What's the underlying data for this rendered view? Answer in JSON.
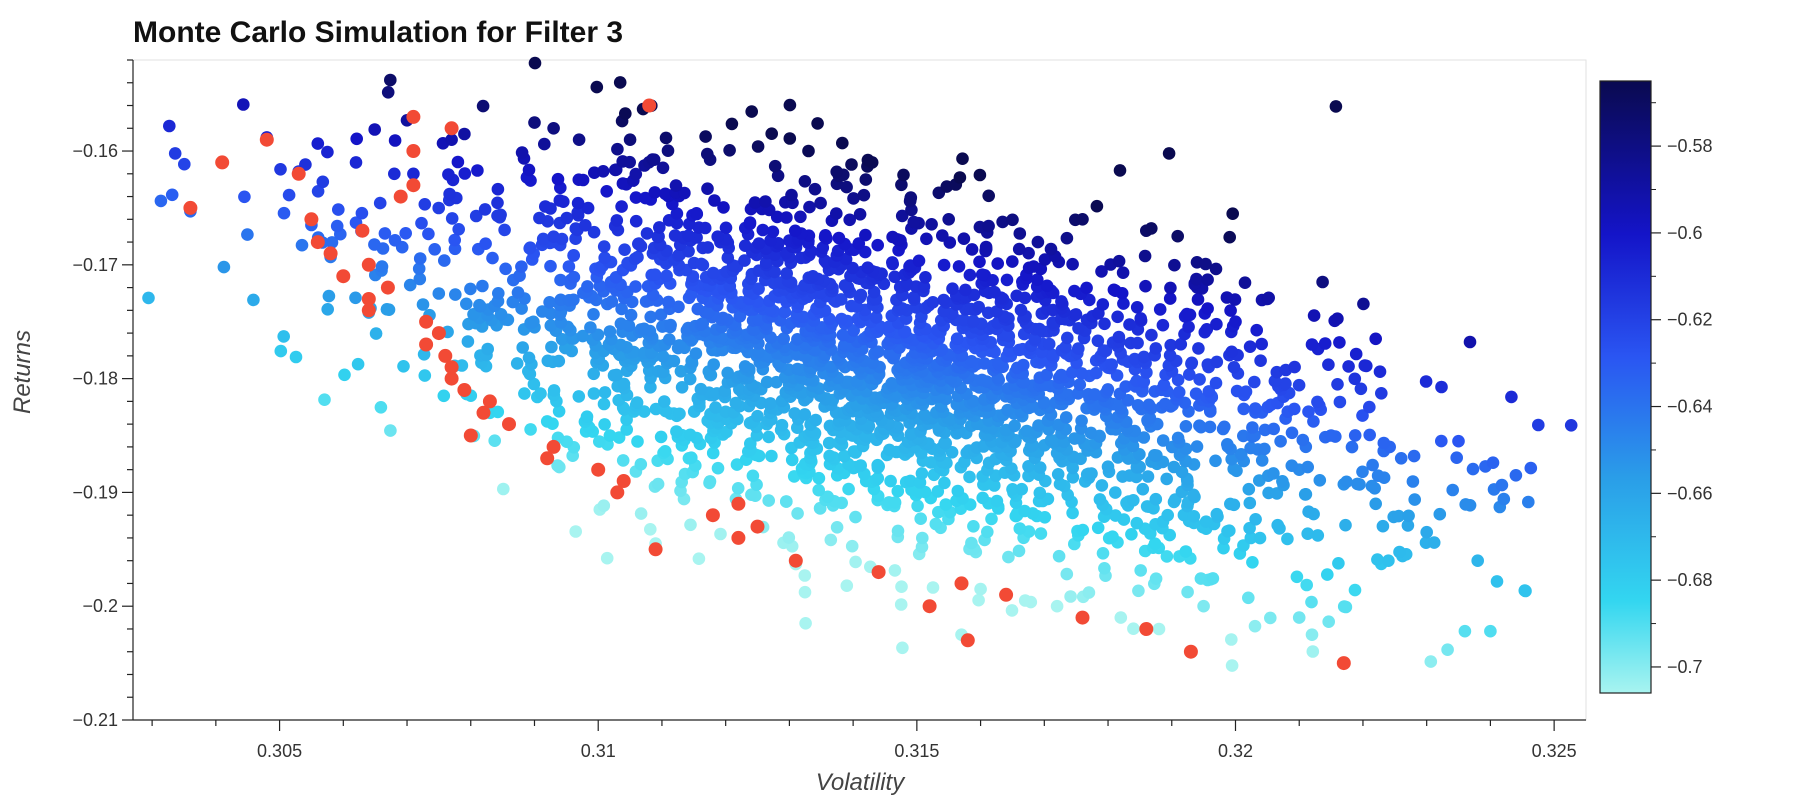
{
  "chart_data": {
    "type": "scatter",
    "title": "Monte Carlo Simulation for Filter 3",
    "xlabel": "Volatility",
    "ylabel": "Returns",
    "xlim": [
      0.3027,
      0.3255
    ],
    "ylim": [
      -0.21,
      -0.152
    ],
    "x_ticks": [
      0.305,
      0.31,
      0.315,
      0.32,
      0.325
    ],
    "x_tick_labels": [
      "0.305",
      "0.31",
      "0.315",
      "0.32",
      "0.325"
    ],
    "y_ticks": [
      -0.16,
      -0.17,
      -0.18,
      -0.19,
      -0.2,
      -0.21
    ],
    "y_tick_labels": [
      "−0.16",
      "−0.17",
      "−0.18",
      "−0.19",
      "−0.2",
      "−0.21"
    ],
    "grid": false,
    "colorbar": {
      "range": [
        -0.706,
        -0.565
      ],
      "ticks": [
        -0.58,
        -0.6,
        -0.62,
        -0.64,
        -0.66,
        -0.68,
        -0.7
      ],
      "tick_labels": [
        "−0.58",
        "−0.6",
        "−0.62",
        "−0.64",
        "−0.66",
        "−0.68",
        "−0.7"
      ],
      "colors": [
        "#0a0a50",
        "#1414c8",
        "#2a55f2",
        "#2a9ee8",
        "#33d6f0",
        "#a8f4f0"
      ]
    },
    "cloud": {
      "count": 2600,
      "center": [
        0.3145,
        -0.179
      ],
      "x_sd": 0.0037,
      "slope": -1.12,
      "resid_sd": 0.0072,
      "color_value_range": [
        -0.565,
        -0.706
      ]
    },
    "outlier_points": [
      [
        0.3036,
        -0.1653
      ],
      [
        0.3048,
        -0.1588
      ],
      [
        0.3053,
        -0.1618
      ],
      [
        0.3055,
        -0.1665
      ],
      [
        0.3058,
        -0.1693
      ],
      [
        0.3062,
        -0.1663
      ],
      [
        0.3064,
        -0.1742
      ],
      [
        0.3066,
        -0.1705
      ],
      [
        0.307,
        -0.1573
      ],
      [
        0.3071,
        -0.162
      ],
      [
        0.3073,
        -0.177
      ],
      [
        0.3077,
        -0.179
      ],
      [
        0.3079,
        -0.1585
      ],
      [
        0.308,
        -0.1815
      ],
      [
        0.3083,
        -0.183
      ],
      [
        0.3092,
        -0.187
      ],
      [
        0.3103,
        -0.19
      ],
      [
        0.3109,
        -0.1945
      ],
      [
        0.3131,
        -0.1963
      ],
      [
        0.3157,
        -0.2025
      ],
      [
        0.3177,
        -0.1988
      ],
      [
        0.3182,
        -0.201
      ],
      [
        0.321,
        -0.201
      ],
      [
        0.3212,
        -0.2025
      ],
      [
        0.3236,
        -0.2022
      ],
      [
        0.324,
        -0.2022
      ],
      [
        0.3244,
        -0.1885
      ],
      [
        0.3238,
        -0.196
      ],
      [
        0.323,
        -0.1935
      ],
      [
        0.3222,
        -0.191
      ],
      [
        0.3226,
        -0.187
      ],
      [
        0.3221,
        -0.1825
      ],
      [
        0.3216,
        -0.1805
      ],
      [
        0.3222,
        -0.1765
      ],
      [
        0.3215,
        -0.185
      ],
      [
        0.321,
        -0.188
      ],
      [
        0.3235,
        -0.1855
      ],
      [
        0.3224,
        -0.196
      ],
      [
        0.3194,
        -0.172
      ],
      [
        0.3186,
        -0.167
      ],
      [
        0.3176,
        -0.166
      ],
      [
        0.3169,
        -0.168
      ],
      [
        0.3155,
        -0.166
      ],
      [
        0.3143,
        -0.161
      ],
      [
        0.3133,
        -0.16
      ],
      [
        0.3097,
        -0.159
      ],
      [
        0.3093,
        -0.158
      ],
      [
        0.3105,
        -0.159
      ],
      [
        0.309,
        -0.1575
      ],
      [
        0.3062,
        -0.161
      ],
      [
        0.3077,
        -0.159
      ],
      [
        0.3068,
        -0.162
      ],
      [
        0.3205,
        -0.173
      ],
      [
        0.32,
        -0.175
      ],
      [
        0.3212,
        -0.177
      ],
      [
        0.3172,
        -0.2
      ],
      [
        0.3188,
        -0.202
      ],
      [
        0.3195,
        -0.2
      ],
      [
        0.316,
        -0.1985
      ],
      [
        0.3167,
        -0.1995
      ]
    ],
    "efficient_frontier": {
      "name": "",
      "color": "#f24a35",
      "points": [
        [
          0.3036,
          -0.165
        ],
        [
          0.3041,
          -0.161
        ],
        [
          0.3048,
          -0.159
        ],
        [
          0.3053,
          -0.162
        ],
        [
          0.3055,
          -0.166
        ],
        [
          0.3056,
          -0.168
        ],
        [
          0.3058,
          -0.169
        ],
        [
          0.306,
          -0.171
        ],
        [
          0.3063,
          -0.167
        ],
        [
          0.3064,
          -0.17
        ],
        [
          0.3064,
          -0.173
        ],
        [
          0.3064,
          -0.174
        ],
        [
          0.3067,
          -0.172
        ],
        [
          0.3069,
          -0.164
        ],
        [
          0.3071,
          -0.157
        ],
        [
          0.3071,
          -0.16
        ],
        [
          0.3071,
          -0.163
        ],
        [
          0.3073,
          -0.175
        ],
        [
          0.3073,
          -0.177
        ],
        [
          0.3075,
          -0.176
        ],
        [
          0.3076,
          -0.178
        ],
        [
          0.3077,
          -0.158
        ],
        [
          0.3077,
          -0.18
        ],
        [
          0.3077,
          -0.179
        ],
        [
          0.3079,
          -0.181
        ],
        [
          0.308,
          -0.185
        ],
        [
          0.3082,
          -0.183
        ],
        [
          0.3083,
          -0.182
        ],
        [
          0.3086,
          -0.184
        ],
        [
          0.3092,
          -0.187
        ],
        [
          0.3093,
          -0.186
        ],
        [
          0.31,
          -0.188
        ],
        [
          0.3103,
          -0.19
        ],
        [
          0.3104,
          -0.189
        ],
        [
          0.3108,
          -0.156
        ],
        [
          0.3109,
          -0.195
        ],
        [
          0.3118,
          -0.192
        ],
        [
          0.3122,
          -0.194
        ],
        [
          0.3122,
          -0.191
        ],
        [
          0.3125,
          -0.193
        ],
        [
          0.3131,
          -0.196
        ],
        [
          0.3144,
          -0.197
        ],
        [
          0.3152,
          -0.2
        ],
        [
          0.3157,
          -0.198
        ],
        [
          0.3158,
          -0.203
        ],
        [
          0.3164,
          -0.199
        ],
        [
          0.3176,
          -0.201
        ],
        [
          0.3186,
          -0.202
        ],
        [
          0.3193,
          -0.204
        ],
        [
          0.3217,
          -0.205
        ]
      ]
    }
  }
}
